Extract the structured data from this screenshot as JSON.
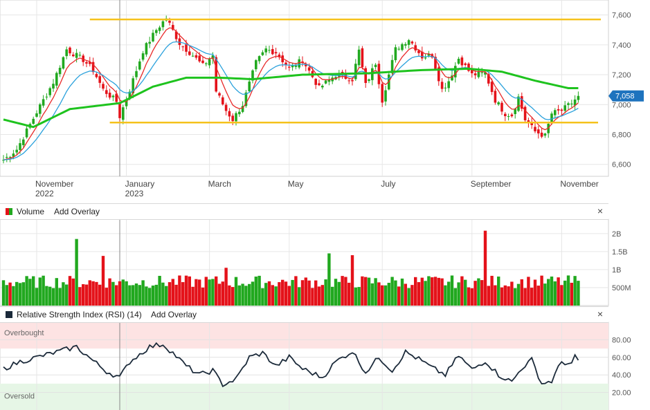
{
  "chart_data": [
    {
      "type": "candlestick",
      "title": "",
      "ylim": [
        6520,
        7700
      ],
      "yticks": [
        "7,600",
        "7,400",
        "7,200",
        "7,000",
        "6,800",
        "6,600"
      ],
      "ytick_values": [
        7600,
        7400,
        7200,
        7000,
        6800,
        6600
      ],
      "last_price_label": "7,058",
      "last_price": 7058,
      "x_labels": [
        {
          "text": "November",
          "sub": "2022",
          "index": 10
        },
        {
          "text": "January",
          "sub": "2023",
          "index": 37
        },
        {
          "text": "March",
          "sub": "",
          "index": 62
        },
        {
          "text": "May",
          "sub": "",
          "index": 86
        },
        {
          "text": "July",
          "sub": "",
          "index": 114
        },
        {
          "text": "September",
          "sub": "",
          "index": 141
        },
        {
          "text": "November",
          "sub": "",
          "index": 168
        }
      ],
      "resistance_level": 7570,
      "support_level": 6880,
      "anchors": [
        [
          0,
          6630
        ],
        [
          4,
          6700
        ],
        [
          10,
          6950
        ],
        [
          15,
          7150
        ],
        [
          19,
          7370
        ],
        [
          24,
          7300
        ],
        [
          27,
          7230
        ],
        [
          30,
          7100
        ],
        [
          34,
          7020
        ],
        [
          35,
          6920
        ],
        [
          38,
          7100
        ],
        [
          42,
          7360
        ],
        [
          46,
          7500
        ],
        [
          49,
          7580
        ],
        [
          53,
          7410
        ],
        [
          57,
          7330
        ],
        [
          60,
          7260
        ],
        [
          63,
          7330
        ],
        [
          64,
          7090
        ],
        [
          67,
          6960
        ],
        [
          69,
          6900
        ],
        [
          72,
          7000
        ],
        [
          76,
          7280
        ],
        [
          79,
          7370
        ],
        [
          82,
          7350
        ],
        [
          86,
          7240
        ],
        [
          90,
          7300
        ],
        [
          95,
          7110
        ],
        [
          100,
          7200
        ],
        [
          105,
          7170
        ],
        [
          107,
          7360
        ],
        [
          109,
          7130
        ],
        [
          112,
          7280
        ],
        [
          114,
          7030
        ],
        [
          118,
          7370
        ],
        [
          122,
          7440
        ],
        [
          126,
          7320
        ],
        [
          129,
          7330
        ],
        [
          132,
          7100
        ],
        [
          134,
          7160
        ],
        [
          137,
          7310
        ],
        [
          141,
          7200
        ],
        [
          145,
          7210
        ],
        [
          148,
          7030
        ],
        [
          151,
          6940
        ],
        [
          153,
          6930
        ],
        [
          155,
          7050
        ],
        [
          157,
          6900
        ],
        [
          160,
          6820
        ],
        [
          163,
          6790
        ],
        [
          165,
          6940
        ],
        [
          168,
          6960
        ],
        [
          171,
          7010
        ],
        [
          173,
          7058
        ]
      ],
      "ema200_anchors": [
        [
          0,
          6900
        ],
        [
          9,
          6850
        ],
        [
          20,
          6970
        ],
        [
          35,
          7010
        ],
        [
          45,
          7120
        ],
        [
          55,
          7180
        ],
        [
          65,
          7180
        ],
        [
          75,
          7170
        ],
        [
          90,
          7200
        ],
        [
          110,
          7210
        ],
        [
          125,
          7230
        ],
        [
          140,
          7240
        ],
        [
          150,
          7220
        ],
        [
          160,
          7160
        ],
        [
          170,
          7110
        ],
        [
          173,
          7110
        ]
      ],
      "colors": {
        "up": "#21a81f",
        "down": "#e4121a",
        "ema_short": "#e82828",
        "ema_mid": "#2aa1dc",
        "ema_long": "#1ec31e",
        "level_line": "#f5c21b"
      }
    },
    {
      "type": "bar",
      "title": "Volume",
      "yticks": [
        "2B",
        "1.5B",
        "1B",
        "500M"
      ],
      "ytick_values": [
        2000000000,
        1500000000,
        1000000000,
        500000000
      ],
      "ylim": [
        0,
        2400000000
      ],
      "spikes": [
        {
          "index": 22,
          "value": 1850000000
        },
        {
          "index": 30,
          "value": 1380000000
        },
        {
          "index": 67,
          "value": 1050000000
        },
        {
          "index": 98,
          "value": 1450000000
        },
        {
          "index": 105,
          "value": 1400000000
        },
        {
          "index": 145,
          "value": 2080000000
        }
      ]
    },
    {
      "type": "line",
      "title": "Relative Strength Index (RSI) (14)",
      "ylim": [
        0,
        100
      ],
      "yticks": [
        "80.00",
        "60.00",
        "40.00",
        "20.00"
      ],
      "ytick_values": [
        80,
        60,
        40,
        20
      ],
      "overbought_label": "Overbought",
      "oversold_label": "Oversold",
      "overbought_level": 70,
      "oversold_level": 30,
      "anchors": [
        [
          0,
          47
        ],
        [
          5,
          55
        ],
        [
          10,
          60
        ],
        [
          16,
          66
        ],
        [
          22,
          72
        ],
        [
          27,
          56
        ],
        [
          31,
          44
        ],
        [
          35,
          37
        ],
        [
          38,
          55
        ],
        [
          44,
          72
        ],
        [
          48,
          75
        ],
        [
          51,
          65
        ],
        [
          55,
          50
        ],
        [
          59,
          40
        ],
        [
          63,
          45
        ],
        [
          66,
          29
        ],
        [
          70,
          35
        ],
        [
          74,
          60
        ],
        [
          78,
          65
        ],
        [
          82,
          50
        ],
        [
          86,
          60
        ],
        [
          90,
          47
        ],
        [
          96,
          37
        ],
        [
          100,
          55
        ],
        [
          105,
          67
        ],
        [
          109,
          43
        ],
        [
          113,
          60
        ],
        [
          117,
          45
        ],
        [
          121,
          66
        ],
        [
          125,
          58
        ],
        [
          129,
          48
        ],
        [
          133,
          40
        ],
        [
          137,
          62
        ],
        [
          141,
          46
        ],
        [
          145,
          56
        ],
        [
          149,
          40
        ],
        [
          153,
          32
        ],
        [
          156,
          48
        ],
        [
          159,
          57
        ],
        [
          162,
          30
        ],
        [
          165,
          33
        ],
        [
          168,
          55
        ],
        [
          171,
          52
        ],
        [
          172,
          60
        ],
        [
          173,
          56
        ]
      ]
    }
  ],
  "volume_panel": {
    "title": "Volume",
    "add_overlay": "Add Overlay",
    "close": "×"
  },
  "rsi_panel": {
    "title": "Relative Strength Index (RSI) (14)",
    "add_overlay": "Add Overlay",
    "close": "×"
  }
}
